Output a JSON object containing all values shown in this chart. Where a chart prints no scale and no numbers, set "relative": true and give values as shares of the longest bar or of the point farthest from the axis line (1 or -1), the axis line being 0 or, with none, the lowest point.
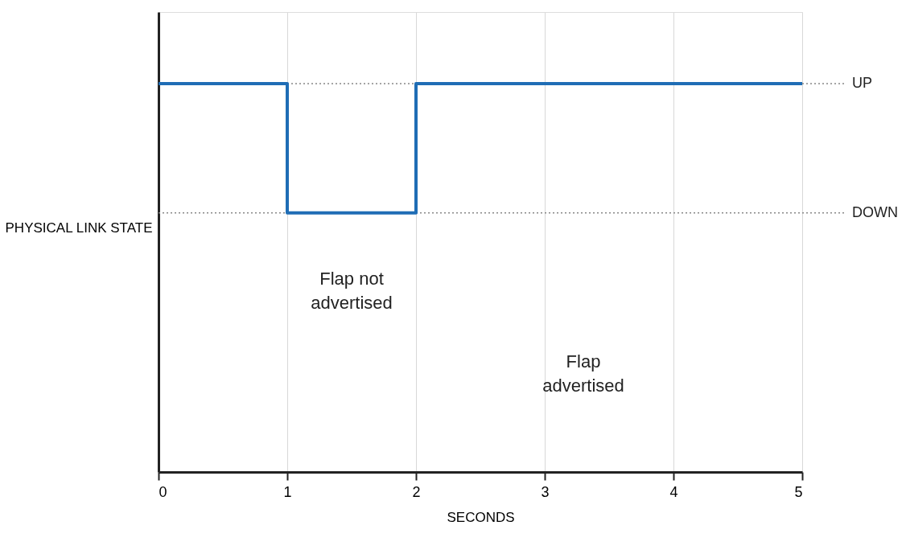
{
  "chart_data": {
    "type": "step",
    "xlabel": "SECONDS",
    "ylabel": "PHYSICAL LINK STATE",
    "relative": true,
    "x": [
      0,
      1,
      2,
      5
    ],
    "series": [
      {
        "color": "#1f6db5",
        "values": [
          1,
          0.667,
          1,
          1
        ]
      }
    ],
    "xlim": [
      0,
      5
    ],
    "xticks": [
      0,
      1,
      2,
      3,
      4,
      5
    ],
    "grid": "x",
    "line_style": "solid",
    "ref_lines": [
      {
        "axis": "y",
        "value": 1,
        "label": "UP",
        "line_style": "dotted",
        "color": "#888888"
      },
      {
        "axis": "y",
        "value": 0.667,
        "label": "DOWN",
        "line_style": "dotted",
        "color": "#888888"
      }
    ],
    "annotations": [
      "Flap not advertised",
      "Flap advertised"
    ]
  }
}
